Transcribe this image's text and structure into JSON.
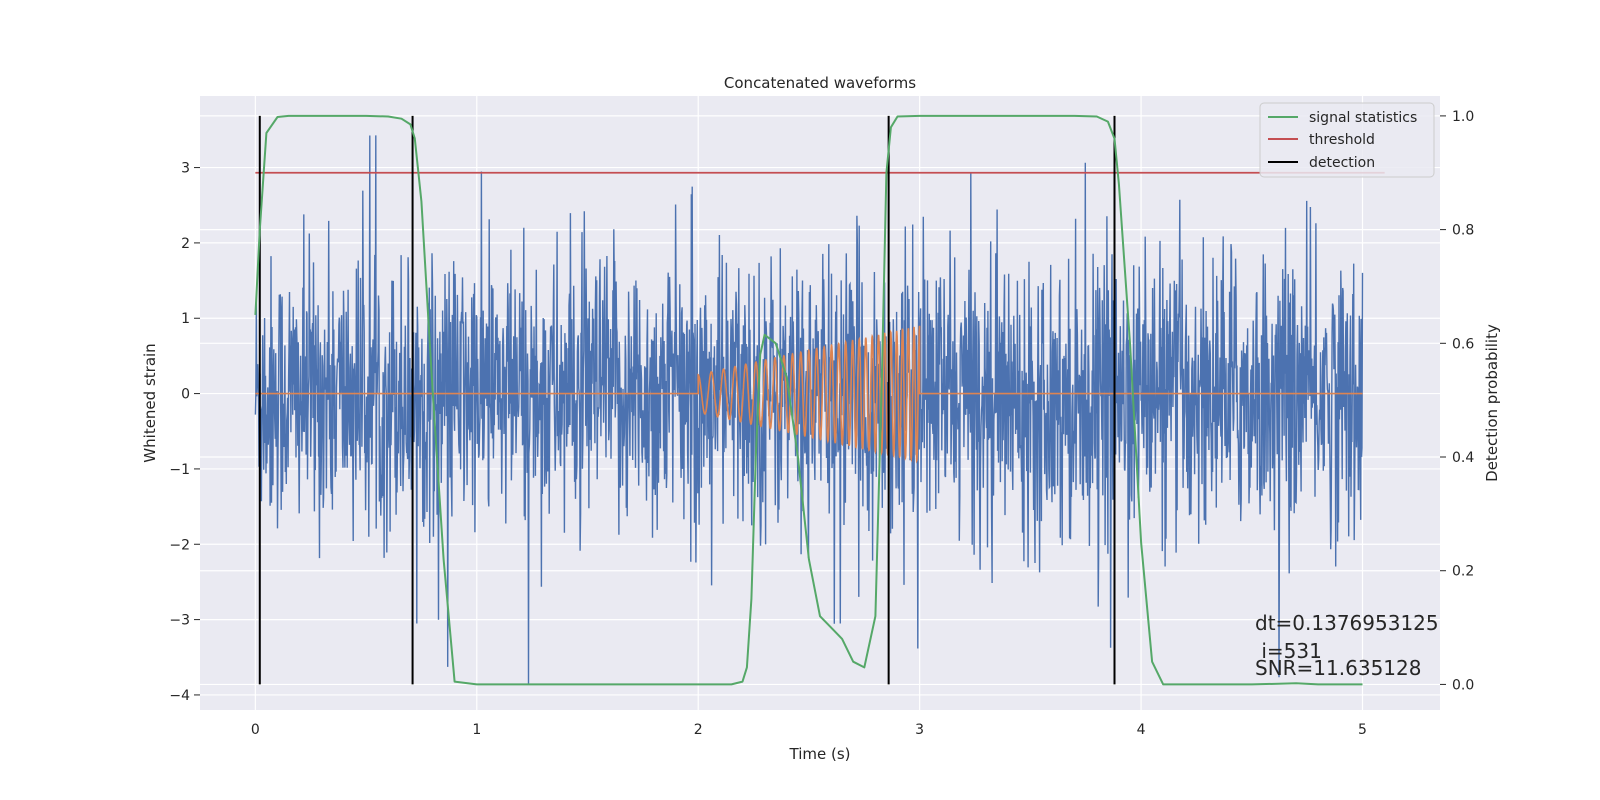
{
  "chart_data": {
    "type": "line",
    "title": "Concatenated waveforms",
    "xlabel": "Time (s)",
    "ylabel": "Whitened strain",
    "y2label": "Detection probability",
    "xlim": [
      -0.25,
      5.35
    ],
    "ylim": [
      -4.2,
      3.95
    ],
    "y2lim": [
      -0.045,
      1.035
    ],
    "xticks": [
      0,
      1,
      2,
      3,
      4,
      5
    ],
    "yticks": [
      -4,
      -3,
      -2,
      -1,
      0,
      1,
      2,
      3
    ],
    "y2ticks": [
      0.0,
      0.2,
      0.4,
      0.6,
      0.8,
      1.0
    ],
    "grid": true,
    "legend_position": "top-right",
    "legend": [
      {
        "label": "signal statistics",
        "color": "#55a868"
      },
      {
        "label": "threshold",
        "color": "#c44e52"
      },
      {
        "label": "detection",
        "color": "#000000"
      }
    ],
    "noise": {
      "color": "#4c72b0",
      "x_range": [
        0,
        5
      ],
      "typical_amplitude": 0.9,
      "max_spike": 3.6,
      "min_spike": -3.85
    },
    "template": {
      "color": "#dd8452",
      "chirp_start": 2.0,
      "chirp_end": 3.0,
      "amp_start": 0.25,
      "amp_end": 0.9,
      "freq_start": 16,
      "freq_end": 40
    },
    "threshold": {
      "y": 0.9,
      "x_range": [
        0,
        5.1
      ]
    },
    "detections": [
      0.02,
      0.71,
      2.86,
      3.88
    ],
    "signal_statistics": {
      "x": [
        0.0,
        0.02,
        0.05,
        0.1,
        0.15,
        0.3,
        0.5,
        0.6,
        0.66,
        0.7,
        0.72,
        0.75,
        0.78,
        0.8,
        0.85,
        0.9,
        1.0,
        1.5,
        2.0,
        2.15,
        2.2,
        2.22,
        2.24,
        2.26,
        2.28,
        2.3,
        2.35,
        2.4,
        2.45,
        2.5,
        2.55,
        2.6,
        2.65,
        2.7,
        2.75,
        2.8,
        2.83,
        2.85,
        2.87,
        2.9,
        3.0,
        3.5,
        3.7,
        3.8,
        3.85,
        3.88,
        3.9,
        3.95,
        4.0,
        4.05,
        4.1,
        4.2,
        4.5,
        4.7,
        4.8,
        5.0
      ],
      "y": [
        0.65,
        0.8,
        0.97,
        0.998,
        1.0,
        1.0,
        1.0,
        0.999,
        0.995,
        0.985,
        0.96,
        0.85,
        0.65,
        0.52,
        0.22,
        0.005,
        0.0,
        0.0,
        0.0,
        0.0,
        0.005,
        0.03,
        0.15,
        0.4,
        0.58,
        0.615,
        0.6,
        0.54,
        0.4,
        0.22,
        0.12,
        0.1,
        0.08,
        0.04,
        0.03,
        0.12,
        0.55,
        0.9,
        0.98,
        0.999,
        1.0,
        1.0,
        1.0,
        0.999,
        0.99,
        0.96,
        0.88,
        0.6,
        0.25,
        0.04,
        0.0,
        0.0,
        0.0,
        0.002,
        0.0,
        0.0
      ]
    },
    "annotations": {
      "dt": "dt=0.1376953125",
      "i": " i=531",
      "snr": "SNR=11.635128"
    }
  }
}
